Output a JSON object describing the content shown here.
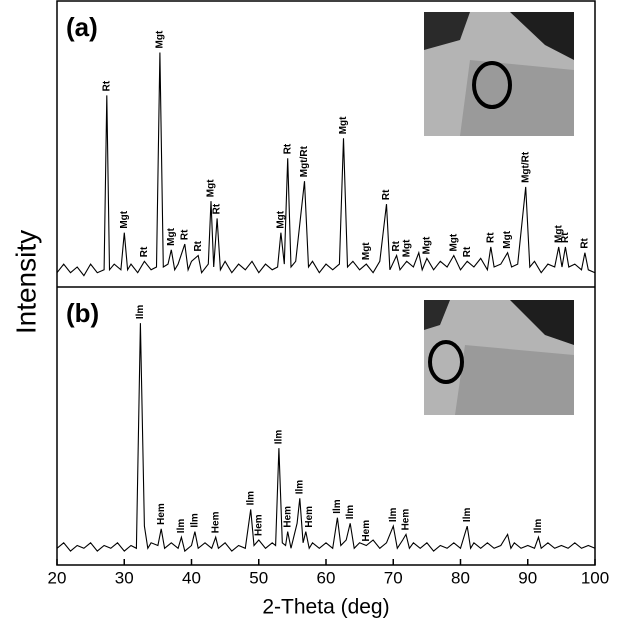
{
  "chart_data": [
    {
      "type": "line",
      "title": "(a)",
      "ylabel": "Intensity",
      "color": "#000000",
      "xlim": [
        20,
        100
      ],
      "ylim": [
        0,
        100
      ],
      "x": [
        20,
        21,
        22,
        23,
        24,
        25,
        26,
        27,
        27.4,
        27.8,
        28.5,
        29.5,
        30,
        30.5,
        31,
        32,
        33,
        34,
        34.8,
        35.3,
        35.8,
        36.5,
        37,
        37.5,
        38,
        39,
        39.5,
        40,
        41,
        41.5,
        42.5,
        42.9,
        43.3,
        43.8,
        44.3,
        45,
        46,
        47,
        48,
        49,
        50,
        51,
        52,
        52.8,
        53.3,
        53.8,
        54.3,
        54.8,
        55.5,
        56.8,
        57.4,
        58,
        59,
        60,
        61,
        62,
        62.6,
        63.2,
        64,
        65,
        66,
        67,
        68,
        69,
        69.5,
        70.5,
        71,
        72,
        73,
        73.8,
        74.3,
        75,
        76,
        77,
        78,
        79,
        80,
        81,
        82,
        83,
        84,
        84.5,
        85,
        86,
        87,
        87.6,
        88.5,
        89.7,
        90.3,
        91,
        92,
        93,
        94,
        94.6,
        95.1,
        95.6,
        96.1,
        97,
        98,
        98.5,
        99,
        100
      ],
      "values": [
        5,
        8,
        5,
        7,
        4,
        8,
        5,
        6,
        67,
        6,
        8,
        6,
        19,
        6,
        8,
        5,
        9,
        6,
        7,
        82,
        7,
        8,
        13,
        6,
        8,
        15,
        6,
        9,
        11,
        5,
        8,
        30,
        7,
        24,
        6,
        9,
        5,
        8,
        6,
        9,
        5,
        8,
        6,
        7,
        19,
        8,
        45,
        7,
        9,
        37,
        7,
        9,
        5,
        8,
        6,
        8,
        52,
        7,
        9,
        6,
        8,
        5,
        9,
        29,
        6,
        11,
        6,
        9,
        7,
        12,
        6,
        10,
        6,
        9,
        7,
        11,
        6,
        9,
        7,
        10,
        6,
        14,
        7,
        8,
        12,
        7,
        8,
        35,
        7,
        9,
        5,
        8,
        7,
        14,
        7,
        14,
        7,
        8,
        6,
        12,
        6,
        5
      ],
      "annotations": [
        {
          "text": "Rt",
          "x": 27.4
        },
        {
          "text": "Mgt",
          "x": 30
        },
        {
          "text": "Rt",
          "x": 33
        },
        {
          "text": "Mgt",
          "x": 35.3
        },
        {
          "text": "Mgt",
          "x": 37
        },
        {
          "text": "Rt",
          "x": 39
        },
        {
          "text": "Rt",
          "x": 41
        },
        {
          "text": "Mgt",
          "x": 42.9
        },
        {
          "text": "Rt",
          "x": 43.8
        },
        {
          "text": "Mgt",
          "x": 53.3
        },
        {
          "text": "Rt",
          "x": 54.3
        },
        {
          "text": "Mgt/Rt",
          "x": 56.8
        },
        {
          "text": "Mgt",
          "x": 62.6
        },
        {
          "text": "Mgt",
          "x": 66
        },
        {
          "text": "Rt",
          "x": 69
        },
        {
          "text": "Rt",
          "x": 70.5
        },
        {
          "text": "Mgt",
          "x": 72
        },
        {
          "text": "Mgt",
          "x": 75
        },
        {
          "text": "Mgt",
          "x": 79
        },
        {
          "text": "Rt",
          "x": 81
        },
        {
          "text": "Rt",
          "x": 84.5
        },
        {
          "text": "Mgt",
          "x": 87
        },
        {
          "text": "Mgt/Rt",
          "x": 89.7
        },
        {
          "text": "Mgt",
          "x": 94.6
        },
        {
          "text": "Rt",
          "x": 95.6
        },
        {
          "text": "Rt",
          "x": 98.5
        }
      ]
    },
    {
      "type": "line",
      "title": "(b)",
      "xlabel": "2-Theta (deg)",
      "color": "#000000",
      "xlim": [
        20,
        100
      ],
      "ylim": [
        0,
        100
      ],
      "xticks": [
        20,
        30,
        40,
        50,
        60,
        70,
        80,
        90,
        100
      ],
      "x": [
        20,
        21,
        22,
        23,
        24,
        25,
        26,
        27,
        28,
        29,
        30,
        31,
        31.8,
        32.4,
        33,
        33.5,
        34,
        35,
        35.5,
        36,
        37,
        38,
        38.5,
        39,
        40,
        40.5,
        41,
        42,
        43,
        43.6,
        44,
        45,
        46,
        47,
        48,
        48.8,
        49.3,
        50,
        51,
        52,
        52.5,
        53,
        53.5,
        54,
        54.3,
        54.8,
        55.7,
        56.1,
        56.6,
        57,
        57.5,
        58,
        59,
        60,
        61,
        61.7,
        62.2,
        63,
        63.6,
        64.2,
        65,
        66,
        67,
        68,
        69,
        70,
        70.6,
        71.4,
        71.9,
        72.4,
        73,
        74,
        75,
        76,
        77,
        78,
        79,
        80,
        81,
        81.5,
        82,
        83,
        84,
        85,
        86,
        87,
        87.5,
        88,
        89,
        90,
        91,
        91.6,
        92,
        93,
        94,
        95,
        96,
        97,
        98,
        99,
        100
      ],
      "values": [
        6,
        8,
        5,
        7,
        6,
        8,
        5,
        7,
        6,
        8,
        5,
        7,
        6,
        87,
        14,
        6,
        8,
        7,
        13,
        6,
        8,
        6,
        10,
        5,
        7,
        12,
        6,
        8,
        6,
        10,
        6,
        8,
        5,
        7,
        6,
        20,
        7,
        9,
        6,
        8,
        7,
        42,
        8,
        7,
        12,
        6,
        15,
        24,
        8,
        12,
        6,
        8,
        6,
        8,
        6,
        17,
        7,
        9,
        15,
        6,
        8,
        7,
        9,
        6,
        8,
        14,
        6,
        9,
        11,
        6,
        8,
        6,
        8,
        5,
        7,
        6,
        8,
        6,
        14,
        6,
        8,
        6,
        8,
        6,
        7,
        11,
        6,
        8,
        6,
        7,
        6,
        10,
        6,
        8,
        6,
        7,
        6,
        8,
        6,
        7,
        6
      ],
      "annotations": [
        {
          "text": "Ilm",
          "x": 32.4
        },
        {
          "text": "Hem",
          "x": 35.5
        },
        {
          "text": "Ilm",
          "x": 38.5
        },
        {
          "text": "Ilm",
          "x": 40.5
        },
        {
          "text": "Hem",
          "x": 43.6
        },
        {
          "text": "Ilm",
          "x": 48.8
        },
        {
          "text": "Hem",
          "x": 50
        },
        {
          "text": "Ilm",
          "x": 53
        },
        {
          "text": "Hem",
          "x": 54.3
        },
        {
          "text": "Ilm",
          "x": 56.1
        },
        {
          "text": "Hem",
          "x": 57.5
        },
        {
          "text": "Ilm",
          "x": 61.7
        },
        {
          "text": "Ilm",
          "x": 63.6
        },
        {
          "text": "Hem",
          "x": 66
        },
        {
          "text": "Ilm",
          "x": 70
        },
        {
          "text": "Hem",
          "x": 71.9
        },
        {
          "text": "Ilm",
          "x": 81
        },
        {
          "text": "Ilm",
          "x": 91.6
        }
      ]
    }
  ]
}
